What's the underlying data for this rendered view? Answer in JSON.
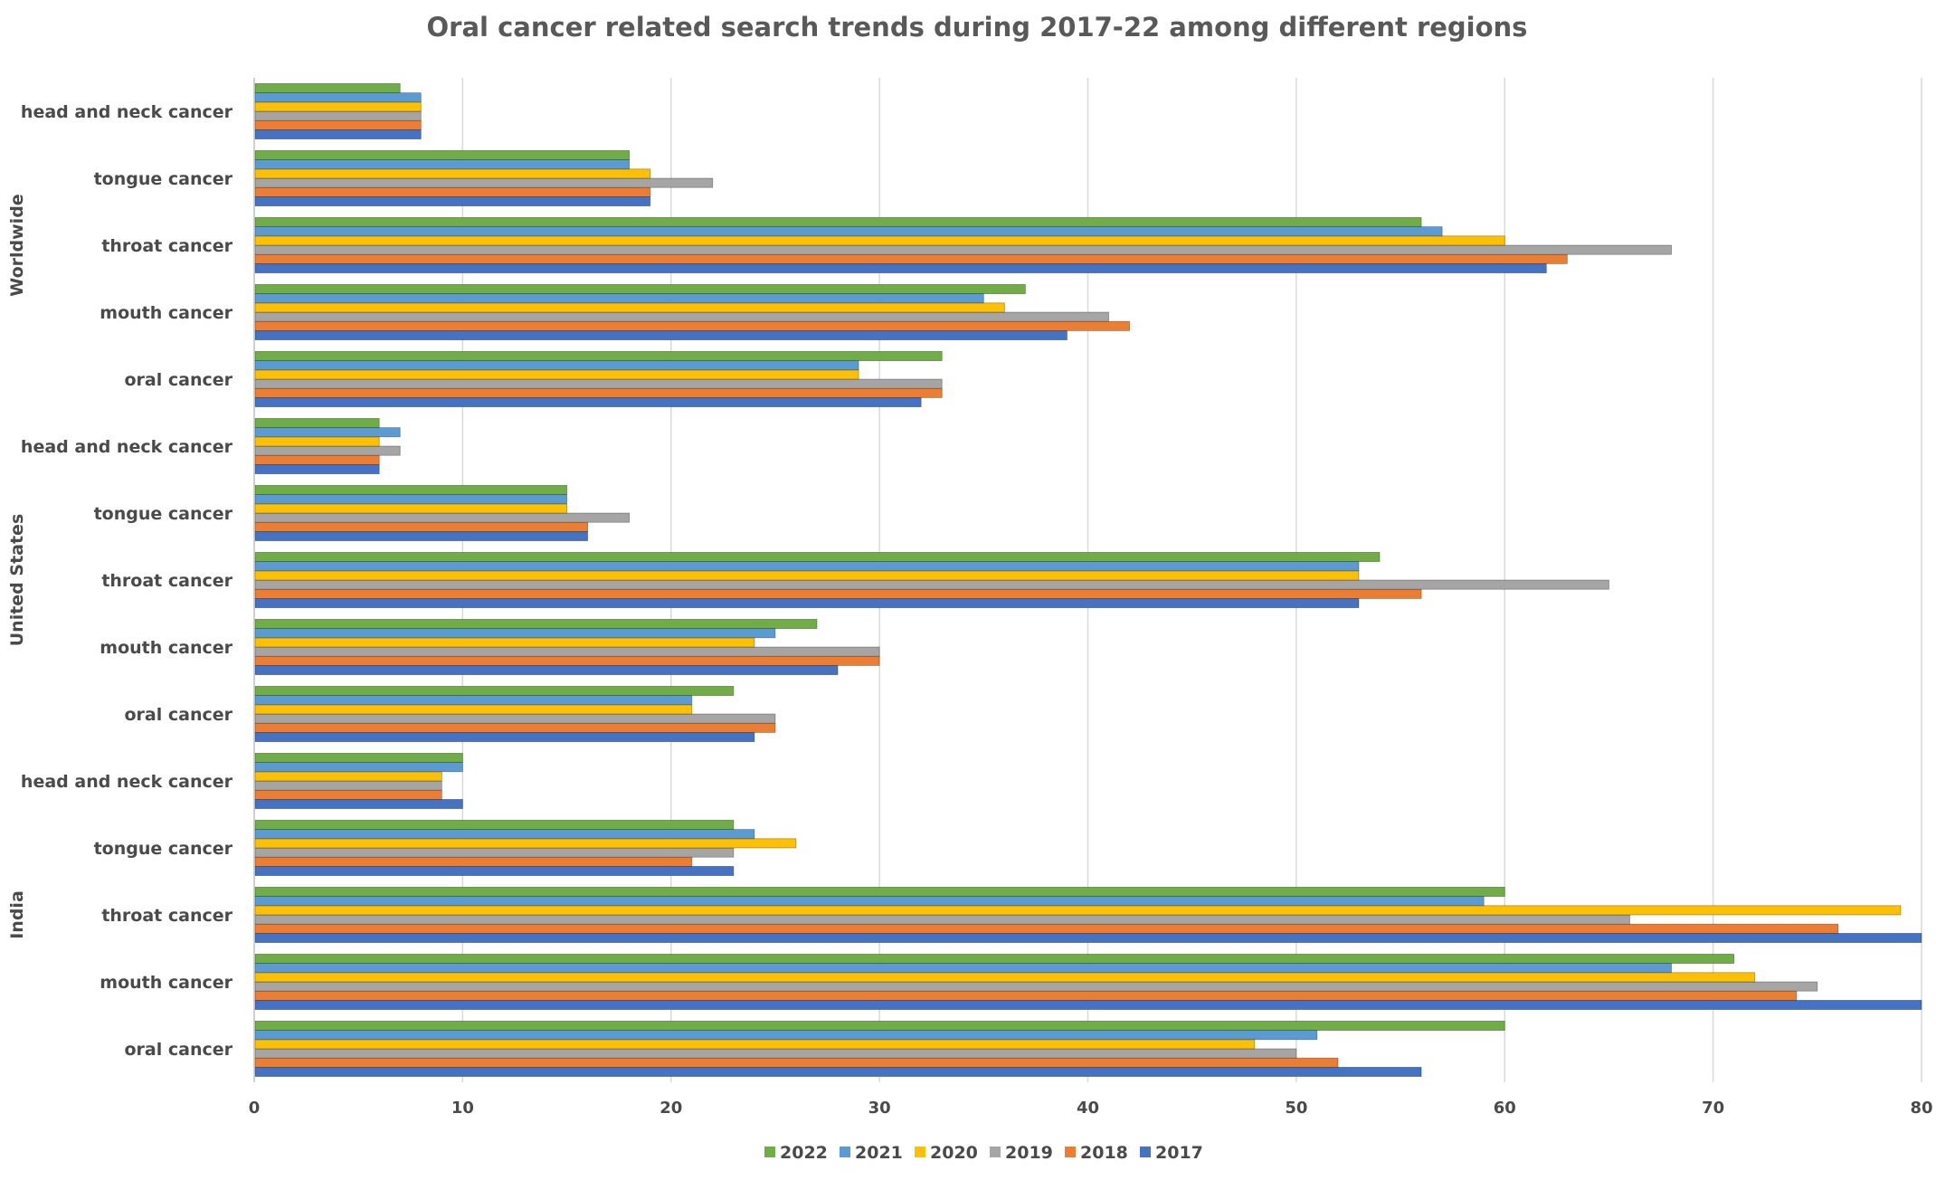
{
  "chart_data": {
    "type": "bar",
    "orientation": "horizontal",
    "title": "Oral cancer related search trends during 2017-22 among different regions",
    "xlim": [
      0,
      80
    ],
    "x_ticks": [
      0,
      10,
      20,
      30,
      40,
      50,
      60,
      70,
      80
    ],
    "grid": true,
    "legend_position": "bottom",
    "categories": [
      "oral cancer",
      "mouth cancer",
      "throat cancer",
      "tongue cancer",
      "head and neck cancer"
    ],
    "legend_order": [
      "2022",
      "2021",
      "2020",
      "2019",
      "2018",
      "2017"
    ],
    "colors": {
      "2017": "#4472c4",
      "2018": "#ed7d31",
      "2019": "#a5a5a5",
      "2020": "#ffc000",
      "2021": "#5b9bd5",
      "2022": "#70ad47"
    },
    "groups": [
      {
        "region": "Worldwide",
        "series": [
          {
            "name": "2017",
            "values": [
              32,
              39,
              62,
              19,
              8
            ]
          },
          {
            "name": "2018",
            "values": [
              33,
              42,
              63,
              19,
              8
            ]
          },
          {
            "name": "2019",
            "values": [
              33,
              41,
              68,
              22,
              8
            ]
          },
          {
            "name": "2020",
            "values": [
              29,
              36,
              60,
              19,
              8
            ]
          },
          {
            "name": "2021",
            "values": [
              29,
              35,
              57,
              18,
              8
            ]
          },
          {
            "name": "2022",
            "values": [
              33,
              37,
              56,
              18,
              7
            ]
          }
        ]
      },
      {
        "region": "United States",
        "series": [
          {
            "name": "2017",
            "values": [
              24,
              28,
              53,
              16,
              6
            ]
          },
          {
            "name": "2018",
            "values": [
              25,
              30,
              56,
              16,
              6
            ]
          },
          {
            "name": "2019",
            "values": [
              25,
              30,
              65,
              18,
              7
            ]
          },
          {
            "name": "2020",
            "values": [
              21,
              24,
              53,
              15,
              6
            ]
          },
          {
            "name": "2021",
            "values": [
              21,
              25,
              53,
              15,
              7
            ]
          },
          {
            "name": "2022",
            "values": [
              23,
              27,
              54,
              15,
              6
            ]
          }
        ]
      },
      {
        "region": "India",
        "series": [
          {
            "name": "2017",
            "values": [
              56,
              80,
              80,
              23,
              10
            ]
          },
          {
            "name": "2018",
            "values": [
              52,
              74,
              76,
              21,
              9
            ]
          },
          {
            "name": "2019",
            "values": [
              50,
              75,
              66,
              23,
              9
            ]
          },
          {
            "name": "2020",
            "values": [
              48,
              72,
              79,
              26,
              9
            ]
          },
          {
            "name": "2021",
            "values": [
              51,
              68,
              59,
              24,
              10
            ]
          },
          {
            "name": "2022",
            "values": [
              60,
              71,
              60,
              23,
              10
            ]
          }
        ]
      }
    ]
  }
}
